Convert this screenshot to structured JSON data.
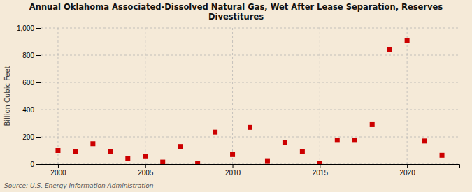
{
  "chart_data": {
    "type": "scatter",
    "title": "Annual Oklahoma Associated-Dissolved Natural Gas, Wet After Lease Separation, Reserves\nDivestitures",
    "y_label": "Billion Cubic Feet",
    "annotations": [
      "Source: U.S. Energy Information Administration"
    ],
    "x": [
      2000,
      2001,
      2002,
      2003,
      2004,
      2005,
      2006,
      2007,
      2008,
      2009,
      2010,
      2011,
      2012,
      2013,
      2014,
      2015,
      2016,
      2017,
      2018,
      2019,
      2020,
      2021,
      2022
    ],
    "values": [
      100,
      90,
      150,
      90,
      40,
      55,
      15,
      130,
      5,
      235,
      70,
      270,
      20,
      160,
      90,
      5,
      175,
      175,
      290,
      840,
      910,
      170,
      65
    ],
    "color": "#cc0000",
    "marker": "square",
    "xlim": [
      1999,
      2023
    ],
    "ylim": [
      0,
      1000
    ],
    "xticks": [
      2000,
      2005,
      2010,
      2015,
      2020
    ],
    "yticks": [
      0,
      200,
      400,
      600,
      800,
      {
        "value": 1000,
        "label": "1,000"
      }
    ],
    "grid": true
  }
}
